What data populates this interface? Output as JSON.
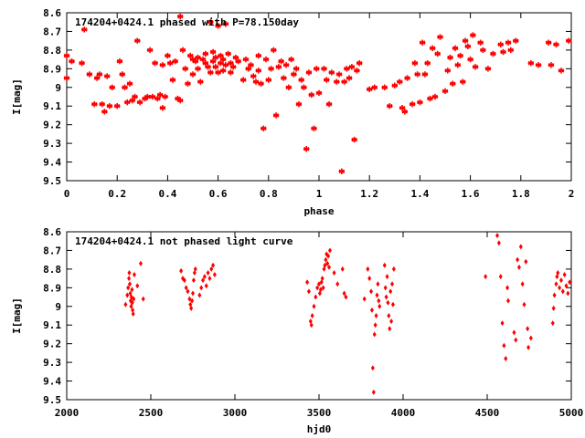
{
  "chart_data": [
    {
      "type": "scatter",
      "title": "174204+0424.1 phased with P=78.150day",
      "xlabel": "phase",
      "ylabel": "I[mag]",
      "xlim": [
        0,
        2
      ],
      "ylim": [
        8.6,
        9.5
      ],
      "y_inverted": true,
      "marker": "asterisk",
      "color": "#ff0000",
      "xticks": [
        "0",
        "0.2",
        "0.4",
        "0.6",
        "0.8",
        "1",
        "1.2",
        "1.4",
        "1.6",
        "1.8",
        "2"
      ],
      "yticks": [
        "8.6",
        "8.7",
        "8.8",
        "8.9",
        "9",
        "9.1",
        "9.2",
        "9.3",
        "9.4",
        "9.5"
      ],
      "points": [
        [
          0.0,
          8.83
        ],
        [
          0.0,
          8.95
        ],
        [
          0.02,
          8.86
        ],
        [
          0.06,
          8.87
        ],
        [
          0.07,
          8.69
        ],
        [
          0.09,
          8.93
        ],
        [
          0.11,
          9.09
        ],
        [
          0.12,
          8.95
        ],
        [
          0.13,
          8.93
        ],
        [
          0.14,
          9.09
        ],
        [
          0.15,
          9.13
        ],
        [
          0.16,
          8.94
        ],
        [
          0.17,
          9.1
        ],
        [
          0.18,
          9.0
        ],
        [
          0.2,
          9.1
        ],
        [
          0.21,
          8.86
        ],
        [
          0.22,
          8.93
        ],
        [
          0.23,
          9.0
        ],
        [
          0.24,
          9.08
        ],
        [
          0.25,
          8.98
        ],
        [
          0.26,
          9.07
        ],
        [
          0.27,
          9.05
        ],
        [
          0.28,
          8.75
        ],
        [
          0.29,
          9.08
        ],
        [
          0.31,
          9.06
        ],
        [
          0.32,
          9.05
        ],
        [
          0.33,
          8.8
        ],
        [
          0.34,
          9.05
        ],
        [
          0.35,
          8.87
        ],
        [
          0.36,
          9.06
        ],
        [
          0.37,
          9.04
        ],
        [
          0.38,
          9.11
        ],
        [
          0.38,
          8.88
        ],
        [
          0.39,
          9.05
        ],
        [
          0.4,
          8.83
        ],
        [
          0.41,
          8.87
        ],
        [
          0.42,
          8.96
        ],
        [
          0.43,
          8.86
        ],
        [
          0.44,
          9.06
        ],
        [
          0.45,
          9.07
        ],
        [
          0.45,
          8.62
        ],
        [
          0.46,
          8.8
        ],
        [
          0.47,
          8.9
        ],
        [
          0.48,
          8.98
        ],
        [
          0.49,
          8.83
        ],
        [
          0.5,
          8.85
        ],
        [
          0.5,
          8.93
        ],
        [
          0.51,
          8.86
        ],
        [
          0.52,
          8.84
        ],
        [
          0.52,
          8.9
        ],
        [
          0.53,
          8.97
        ],
        [
          0.54,
          8.85
        ],
        [
          0.55,
          8.87
        ],
        [
          0.55,
          8.82
        ],
        [
          0.56,
          8.89
        ],
        [
          0.57,
          8.92
        ],
        [
          0.57,
          8.65
        ],
        [
          0.58,
          8.86
        ],
        [
          0.58,
          8.81
        ],
        [
          0.59,
          8.89
        ],
        [
          0.59,
          8.84
        ],
        [
          0.6,
          8.92
        ],
        [
          0.6,
          8.67
        ],
        [
          0.61,
          8.87
        ],
        [
          0.61,
          8.83
        ],
        [
          0.62,
          8.91
        ],
        [
          0.62,
          8.85
        ],
        [
          0.63,
          8.88
        ],
        [
          0.63,
          8.66
        ],
        [
          0.64,
          8.82
        ],
        [
          0.65,
          8.87
        ],
        [
          0.65,
          8.92
        ],
        [
          0.66,
          8.89
        ],
        [
          0.67,
          8.84
        ],
        [
          0.68,
          8.86
        ],
        [
          0.7,
          8.96
        ],
        [
          0.71,
          8.85
        ],
        [
          0.72,
          8.9
        ],
        [
          0.73,
          8.88
        ],
        [
          0.74,
          8.94
        ],
        [
          0.75,
          8.97
        ],
        [
          0.76,
          8.91
        ],
        [
          0.76,
          8.83
        ],
        [
          0.77,
          8.98
        ],
        [
          0.78,
          9.22
        ],
        [
          0.79,
          8.85
        ],
        [
          0.8,
          8.96
        ],
        [
          0.81,
          8.9
        ],
        [
          0.82,
          8.8
        ],
        [
          0.83,
          9.15
        ],
        [
          0.84,
          8.89
        ],
        [
          0.85,
          8.86
        ],
        [
          0.86,
          8.95
        ],
        [
          0.87,
          8.88
        ],
        [
          0.88,
          9.0
        ],
        [
          0.89,
          8.85
        ],
        [
          0.9,
          8.93
        ],
        [
          0.91,
          8.9
        ],
        [
          0.92,
          9.09
        ],
        [
          0.93,
          8.96
        ],
        [
          0.94,
          9.0
        ],
        [
          0.95,
          9.33
        ],
        [
          0.96,
          8.92
        ],
        [
          0.97,
          9.04
        ],
        [
          0.98,
          9.22
        ],
        [
          0.99,
          8.9
        ],
        [
          1.0,
          9.03
        ],
        [
          1.02,
          8.9
        ],
        [
          1.03,
          8.96
        ],
        [
          1.04,
          9.09
        ],
        [
          1.05,
          8.92
        ],
        [
          1.07,
          8.97
        ],
        [
          1.08,
          8.93
        ],
        [
          1.09,
          9.45
        ],
        [
          1.1,
          8.97
        ],
        [
          1.11,
          8.9
        ],
        [
          1.12,
          8.95
        ],
        [
          1.13,
          8.89
        ],
        [
          1.14,
          9.28
        ],
        [
          1.15,
          8.91
        ],
        [
          1.16,
          8.87
        ],
        [
          1.2,
          9.01
        ],
        [
          1.22,
          9.0
        ],
        [
          1.26,
          9.0
        ],
        [
          1.28,
          9.1
        ],
        [
          1.3,
          8.99
        ],
        [
          1.32,
          8.97
        ],
        [
          1.33,
          9.11
        ],
        [
          1.34,
          9.13
        ],
        [
          1.35,
          8.95
        ],
        [
          1.37,
          9.09
        ],
        [
          1.38,
          8.87
        ],
        [
          1.39,
          8.93
        ],
        [
          1.4,
          9.08
        ],
        [
          1.41,
          8.76
        ],
        [
          1.42,
          8.93
        ],
        [
          1.43,
          8.87
        ],
        [
          1.44,
          9.06
        ],
        [
          1.45,
          8.79
        ],
        [
          1.46,
          9.05
        ],
        [
          1.47,
          8.82
        ],
        [
          1.48,
          8.73
        ],
        [
          1.5,
          9.02
        ],
        [
          1.51,
          8.91
        ],
        [
          1.52,
          8.84
        ],
        [
          1.53,
          8.98
        ],
        [
          1.54,
          8.79
        ],
        [
          1.55,
          8.88
        ],
        [
          1.56,
          8.83
        ],
        [
          1.57,
          8.97
        ],
        [
          1.58,
          8.75
        ],
        [
          1.59,
          8.78
        ],
        [
          1.6,
          8.85
        ],
        [
          1.61,
          8.72
        ],
        [
          1.62,
          8.89
        ],
        [
          1.64,
          8.76
        ],
        [
          1.65,
          8.8
        ],
        [
          1.67,
          8.9
        ],
        [
          1.69,
          8.82
        ],
        [
          1.72,
          8.77
        ],
        [
          1.73,
          8.81
        ],
        [
          1.75,
          8.76
        ],
        [
          1.76,
          8.8
        ],
        [
          1.78,
          8.75
        ],
        [
          1.84,
          8.87
        ],
        [
          1.87,
          8.88
        ],
        [
          1.91,
          8.76
        ],
        [
          1.92,
          8.88
        ],
        [
          1.94,
          8.77
        ],
        [
          1.96,
          8.91
        ],
        [
          1.99,
          8.75
        ]
      ]
    },
    {
      "type": "scatter",
      "title": "174204+0424.1 not phased light curve",
      "xlabel": "hjd0",
      "ylabel": "I[mag]",
      "xlim": [
        2000,
        5000
      ],
      "ylim": [
        8.6,
        9.5
      ],
      "y_inverted": true,
      "marker": "diamond",
      "color": "#ff0000",
      "xticks": [
        "2000",
        "2500",
        "3000",
        "3500",
        "4000",
        "4500",
        "5000"
      ],
      "yticks": [
        "8.6",
        "8.7",
        "8.8",
        "8.9",
        "9",
        "9.1",
        "9.2",
        "9.3",
        "9.4",
        "9.5"
      ],
      "points": [
        [
          2350,
          8.99
        ],
        [
          2360,
          8.94
        ],
        [
          2365,
          8.9
        ],
        [
          2370,
          8.85
        ],
        [
          2372,
          8.82
        ],
        [
          2375,
          8.88
        ],
        [
          2378,
          8.93
        ],
        [
          2380,
          8.97
        ],
        [
          2383,
          9.0
        ],
        [
          2385,
          8.95
        ],
        [
          2388,
          8.91
        ],
        [
          2390,
          8.98
        ],
        [
          2392,
          9.02
        ],
        [
          2395,
          9.04
        ],
        [
          2398,
          8.96
        ],
        [
          2402,
          8.83
        ],
        [
          2420,
          8.89
        ],
        [
          2440,
          8.77
        ],
        [
          2455,
          8.96
        ],
        [
          2680,
          8.81
        ],
        [
          2690,
          8.85
        ],
        [
          2700,
          8.86
        ],
        [
          2710,
          8.9
        ],
        [
          2720,
          8.92
        ],
        [
          2730,
          8.96
        ],
        [
          2735,
          8.99
        ],
        [
          2740,
          9.01
        ],
        [
          2745,
          8.97
        ],
        [
          2750,
          8.93
        ],
        [
          2755,
          8.86
        ],
        [
          2760,
          8.82
        ],
        [
          2765,
          8.8
        ],
        [
          2790,
          8.94
        ],
        [
          2800,
          8.9
        ],
        [
          2810,
          8.86
        ],
        [
          2820,
          8.84
        ],
        [
          2830,
          8.89
        ],
        [
          2840,
          8.82
        ],
        [
          2850,
          8.85
        ],
        [
          2860,
          8.8
        ],
        [
          2870,
          8.78
        ],
        [
          2880,
          8.83
        ],
        [
          3430,
          8.87
        ],
        [
          3440,
          8.92
        ],
        [
          3450,
          9.08
        ],
        [
          3455,
          9.1
        ],
        [
          3460,
          9.05
        ],
        [
          3470,
          9.0
        ],
        [
          3480,
          8.95
        ],
        [
          3490,
          8.9
        ],
        [
          3500,
          8.88
        ],
        [
          3505,
          8.93
        ],
        [
          3510,
          8.91
        ],
        [
          3515,
          8.87
        ],
        [
          3520,
          8.85
        ],
        [
          3525,
          8.9
        ],
        [
          3530,
          8.8
        ],
        [
          3535,
          8.78
        ],
        [
          3540,
          8.75
        ],
        [
          3545,
          8.72
        ],
        [
          3550,
          8.77
        ],
        [
          3555,
          8.73
        ],
        [
          3560,
          8.79
        ],
        [
          3565,
          8.7
        ],
        [
          3590,
          8.82
        ],
        [
          3610,
          8.88
        ],
        [
          3640,
          8.8
        ],
        [
          3650,
          8.93
        ],
        [
          3660,
          8.95
        ],
        [
          3770,
          8.96
        ],
        [
          3790,
          8.8
        ],
        [
          3800,
          8.85
        ],
        [
          3810,
          8.92
        ],
        [
          3815,
          9.02
        ],
        [
          3820,
          9.33
        ],
        [
          3825,
          9.46
        ],
        [
          3830,
          9.15
        ],
        [
          3835,
          9.1
        ],
        [
          3840,
          9.05
        ],
        [
          3845,
          8.94
        ],
        [
          3850,
          8.88
        ],
        [
          3855,
          8.97
        ],
        [
          3860,
          9.0
        ],
        [
          3890,
          8.78
        ],
        [
          3895,
          8.9
        ],
        [
          3900,
          8.95
        ],
        [
          3905,
          8.84
        ],
        [
          3910,
          8.98
        ],
        [
          3915,
          9.05
        ],
        [
          3920,
          9.12
        ],
        [
          3925,
          8.92
        ],
        [
          3930,
          9.08
        ],
        [
          3935,
          8.88
        ],
        [
          3940,
          8.99
        ],
        [
          3945,
          8.8
        ],
        [
          4490,
          8.84
        ],
        [
          4560,
          8.62
        ],
        [
          4570,
          8.66
        ],
        [
          4580,
          8.84
        ],
        [
          4590,
          9.09
        ],
        [
          4600,
          9.21
        ],
        [
          4610,
          9.28
        ],
        [
          4620,
          8.9
        ],
        [
          4625,
          8.97
        ],
        [
          4660,
          9.14
        ],
        [
          4670,
          9.18
        ],
        [
          4680,
          8.75
        ],
        [
          4690,
          8.79
        ],
        [
          4700,
          8.68
        ],
        [
          4710,
          8.88
        ],
        [
          4720,
          8.99
        ],
        [
          4730,
          8.76
        ],
        [
          4740,
          9.12
        ],
        [
          4745,
          9.22
        ],
        [
          4760,
          9.17
        ],
        [
          4890,
          9.09
        ],
        [
          4895,
          9.01
        ],
        [
          4900,
          8.94
        ],
        [
          4910,
          8.88
        ],
        [
          4915,
          8.84
        ],
        [
          4920,
          8.82
        ],
        [
          4930,
          8.9
        ],
        [
          4940,
          8.86
        ],
        [
          4950,
          8.92
        ],
        [
          4960,
          8.83
        ],
        [
          4970,
          8.89
        ],
        [
          4980,
          8.93
        ],
        [
          4990,
          8.87
        ]
      ]
    }
  ]
}
